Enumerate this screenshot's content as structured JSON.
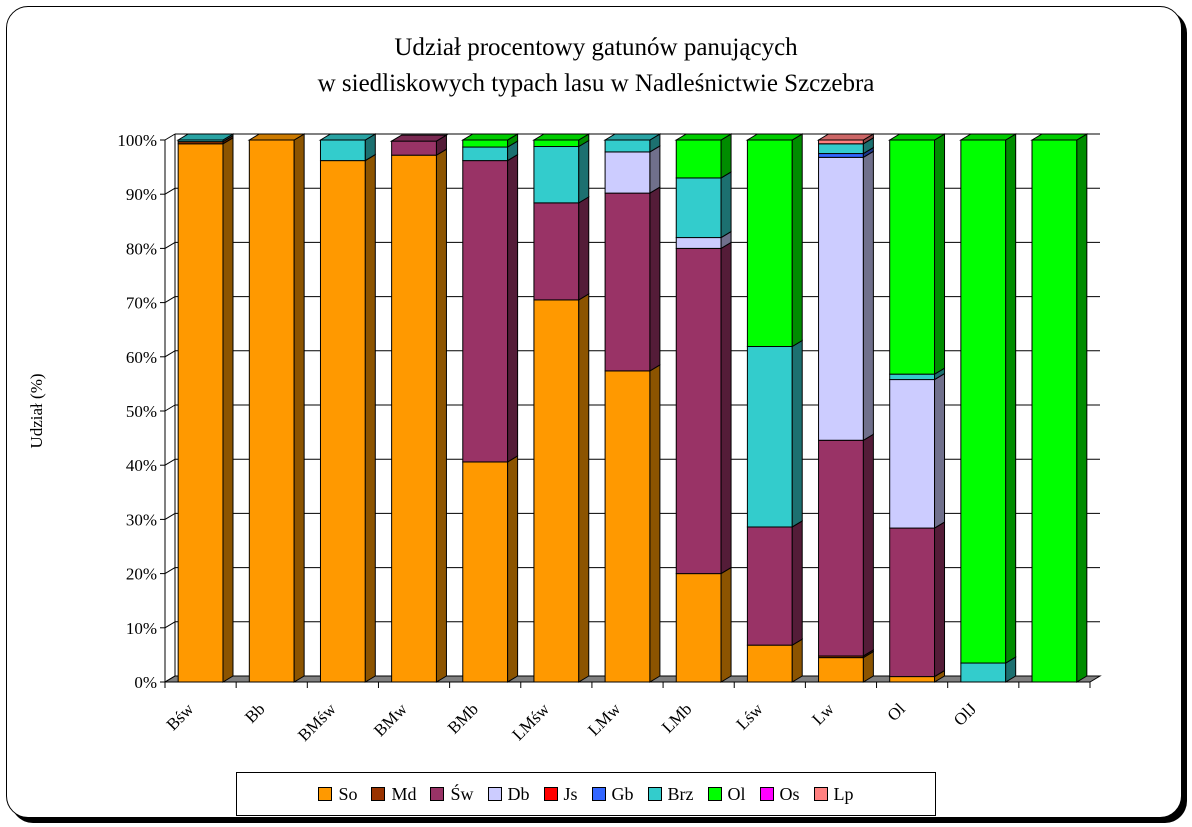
{
  "chart_data": {
    "type": "bar",
    "stacked": true,
    "three_d": true,
    "title_line1": "Udział procentowy gatunów panujących",
    "title_line2": "w siedliskowych typach lasu w Nadleśnictwie Szczebra",
    "xlabel": "",
    "ylabel": "Udział (%)",
    "ylim": [
      0,
      100
    ],
    "yticks": [
      "0%",
      "10%",
      "20%",
      "30%",
      "40%",
      "50%",
      "60%",
      "70%",
      "80%",
      "90%",
      "100%"
    ],
    "categories": [
      "Bśw",
      "Bb",
      "BMśw",
      "BMw",
      "BMb",
      "LMśw",
      "LMw",
      "LMb",
      "Lśw",
      "Lw",
      "Ol",
      "OlJ",
      ""
    ],
    "grid": true,
    "legend_position": "bottom",
    "series": [
      {
        "name": "So",
        "color": "#FF9900",
        "values": [
          99.3,
          100,
          96.2,
          97.2,
          40.6,
          70.5,
          57.4,
          20.0,
          6.8,
          4.5,
          1.0,
          0,
          0
        ]
      },
      {
        "name": "Md",
        "color": "#993300",
        "values": [
          0.4,
          0,
          0,
          0,
          0,
          0,
          0,
          0,
          0,
          0.3,
          0,
          0,
          0
        ]
      },
      {
        "name": "Św",
        "color": "#993366",
        "values": [
          0,
          0,
          0,
          2.6,
          55.6,
          17.9,
          32.8,
          60.0,
          21.8,
          39.8,
          27.4,
          0,
          0
        ]
      },
      {
        "name": "Db",
        "color": "#CCCCFF",
        "values": [
          0,
          0,
          0,
          0,
          0,
          0,
          7.6,
          2.0,
          0,
          52.2,
          27.4,
          0,
          0
        ]
      },
      {
        "name": "Js",
        "color": "#FF0000",
        "values": [
          0,
          0,
          0,
          0,
          0,
          0,
          0,
          0,
          0,
          0,
          0,
          0,
          0
        ]
      },
      {
        "name": "Gb",
        "color": "#3366FF",
        "values": [
          0,
          0,
          0,
          0,
          0,
          0,
          0,
          0,
          0,
          0.7,
          0,
          0,
          0
        ]
      },
      {
        "name": "Brz",
        "color": "#33CCCC",
        "values": [
          0.3,
          0,
          3.8,
          0,
          2.5,
          10.4,
          2.2,
          11.0,
          33.3,
          1.8,
          1.0,
          3.5,
          0
        ]
      },
      {
        "name": "Ol",
        "color": "#00FF00",
        "values": [
          0,
          0,
          0,
          0,
          1.3,
          1.2,
          0,
          7.0,
          38.1,
          0,
          43.2,
          96.5,
          100
        ]
      },
      {
        "name": "Os",
        "color": "#FF00FF",
        "values": [
          0,
          0,
          0,
          0,
          0,
          0,
          0,
          0,
          0,
          0,
          0,
          0,
          0
        ]
      },
      {
        "name": "Lp",
        "color": "#FF8080",
        "values": [
          0,
          0,
          0,
          0,
          0,
          0,
          0,
          0,
          0,
          0.7,
          0,
          0,
          0
        ]
      }
    ]
  }
}
